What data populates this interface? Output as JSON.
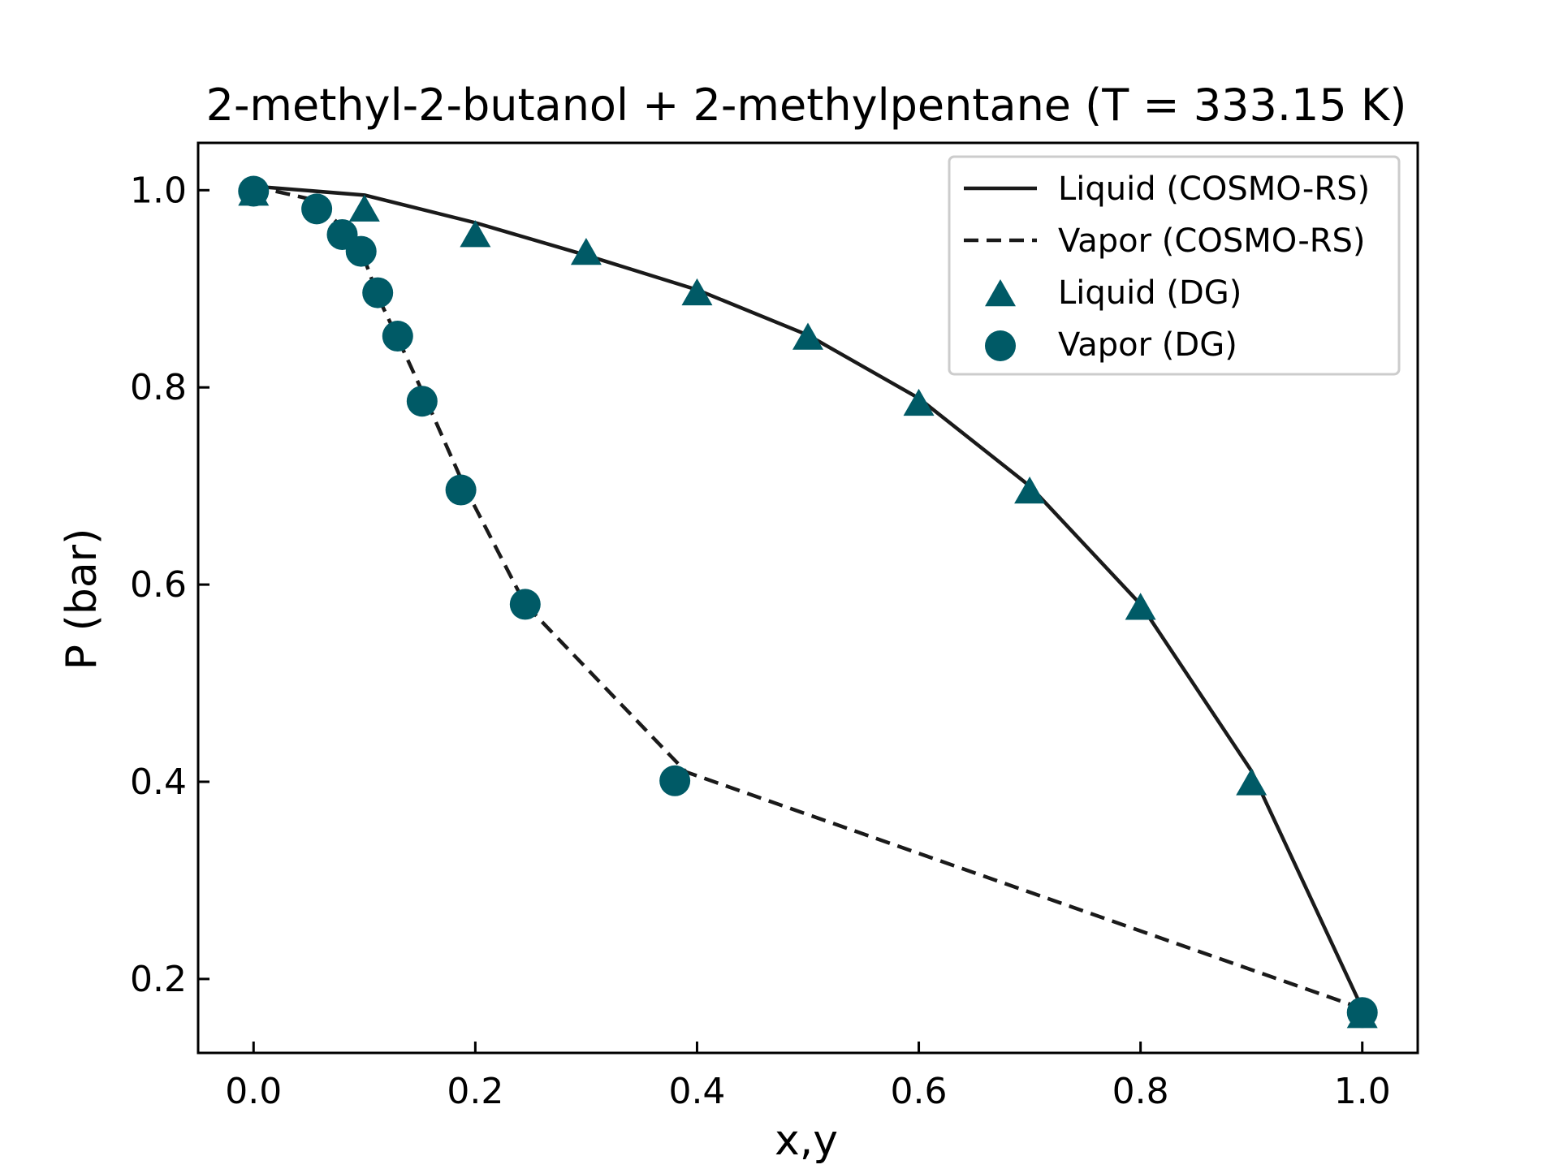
{
  "chart_data": {
    "type": "line",
    "title": "2-methyl-2-butanol + 2-methylpentane (T = 333.15 K)",
    "xlabel": "x,y",
    "ylabel": "P (bar)",
    "xlim": [
      -0.05,
      1.05
    ],
    "ylim": [
      0.125,
      1.048
    ],
    "xticks": [
      0.0,
      0.2,
      0.4,
      0.6,
      0.8,
      1.0
    ],
    "yticks": [
      0.2,
      0.4,
      0.6,
      0.8,
      1.0
    ],
    "xtick_labels": [
      "0.0",
      "0.2",
      "0.4",
      "0.6",
      "0.8",
      "1.0"
    ],
    "ytick_labels": [
      "0.2",
      "0.4",
      "0.6",
      "0.8",
      "1.0"
    ],
    "legend_position": "top-right",
    "marker_color": "#005a66",
    "line_color": "#1a1a1a",
    "series": [
      {
        "name": "Liquid (COSMO-RS)",
        "style": "solid",
        "x": [
          0.0,
          0.1,
          0.2,
          0.3,
          0.4,
          0.5,
          0.6,
          0.7,
          0.8,
          0.9,
          1.0
        ],
        "y": [
          1.004,
          0.995,
          0.967,
          0.934,
          0.899,
          0.853,
          0.789,
          0.7,
          0.58,
          0.411,
          0.17
        ]
      },
      {
        "name": "Vapor (COSMO-RS)",
        "style": "dashed",
        "x": [
          0.0,
          0.055,
          0.08,
          0.1,
          0.113,
          0.13,
          0.155,
          0.19,
          0.245,
          0.39,
          1.0
        ],
        "y": [
          1.004,
          0.99,
          0.962,
          0.93,
          0.89,
          0.85,
          0.789,
          0.7,
          0.58,
          0.41,
          0.17
        ]
      },
      {
        "name": "Liquid (DG)",
        "style": "triangle",
        "x": [
          0.0,
          0.1,
          0.2,
          0.3,
          0.4,
          0.5,
          0.6,
          0.7,
          0.8,
          0.9,
          1.0
        ],
        "y": [
          0.996,
          0.98,
          0.954,
          0.936,
          0.895,
          0.85,
          0.783,
          0.694,
          0.576,
          0.398,
          0.162
        ]
      },
      {
        "name": "Vapor (DG)",
        "style": "circle",
        "x": [
          0.0,
          0.057,
          0.08,
          0.097,
          0.112,
          0.13,
          0.152,
          0.187,
          0.245,
          0.38,
          1.0
        ],
        "y": [
          0.999,
          0.981,
          0.955,
          0.938,
          0.896,
          0.852,
          0.786,
          0.696,
          0.58,
          0.401,
          0.166
        ]
      }
    ]
  }
}
